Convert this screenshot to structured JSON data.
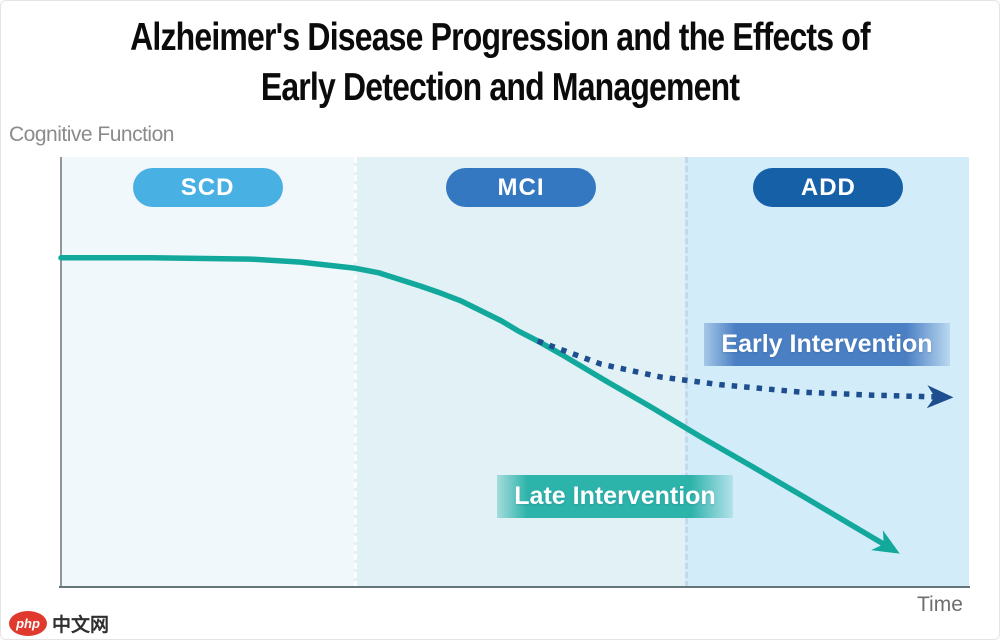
{
  "title": {
    "line1": "Alzheimer's Disease Progression and the Effects of",
    "line2": "Early Detection and Management"
  },
  "y_axis_label": "Cognitive Function",
  "x_axis_label": "Time",
  "stages": [
    {
      "label": "SCD",
      "badge_color": "#49b0e4",
      "zone_color": "#f0f8fc"
    },
    {
      "label": "MCI",
      "badge_color": "#3578c2",
      "zone_color": "#e1f1f6"
    },
    {
      "label": "ADD",
      "badge_color": "#1560a7",
      "zone_color": "#d3ecf9"
    }
  ],
  "annotations": [
    {
      "label": "Early Intervention",
      "color": "#4a7fc3"
    },
    {
      "label": "Late Intervention",
      "color": "#2cb3aa"
    }
  ],
  "watermark": {
    "badge_text": "php",
    "site_text": "中文网",
    "badge_color": "#e0392d"
  },
  "chart_data": {
    "type": "line",
    "title": "Alzheimer's Disease Progression and the Effects of Early Detection and Management",
    "xlabel": "Time",
    "ylabel": "Cognitive Function",
    "x_axis_numeric": false,
    "grid": false,
    "ylim": [
      0,
      100
    ],
    "zones": [
      {
        "label": "SCD",
        "x_start": 0.0,
        "x_end": 0.323
      },
      {
        "label": "MCI",
        "x_start": 0.323,
        "x_end": 0.687
      },
      {
        "label": "ADD",
        "x_start": 0.687,
        "x_end": 1.0
      }
    ],
    "series": [
      {
        "name": "Late Intervention",
        "style": "solid",
        "color": "#13a89c",
        "x": [
          0.0,
          0.099,
          0.209,
          0.264,
          0.323,
          0.35,
          0.396,
          0.419,
          0.441,
          0.463,
          0.485,
          0.504,
          0.525,
          0.551,
          0.6,
          0.65,
          0.705,
          0.76,
          0.815,
          0.87,
          0.917
        ],
        "y": [
          76.5,
          76.5,
          76.2,
          75.5,
          74.1,
          73.0,
          69.9,
          68.2,
          66.4,
          64.1,
          61.8,
          59.4,
          57.1,
          54.0,
          47.8,
          41.7,
          34.7,
          28.0,
          21.2,
          14.3,
          8.4
        ]
      },
      {
        "name": "Early Intervention",
        "style": "dotted",
        "color": "#1d4e8f",
        "x": [
          0.525,
          0.595,
          0.661,
          0.727,
          0.815,
          0.892,
          0.975
        ],
        "y": [
          57.1,
          51.7,
          48.7,
          46.9,
          45.2,
          44.5,
          44.0
        ]
      }
    ]
  }
}
